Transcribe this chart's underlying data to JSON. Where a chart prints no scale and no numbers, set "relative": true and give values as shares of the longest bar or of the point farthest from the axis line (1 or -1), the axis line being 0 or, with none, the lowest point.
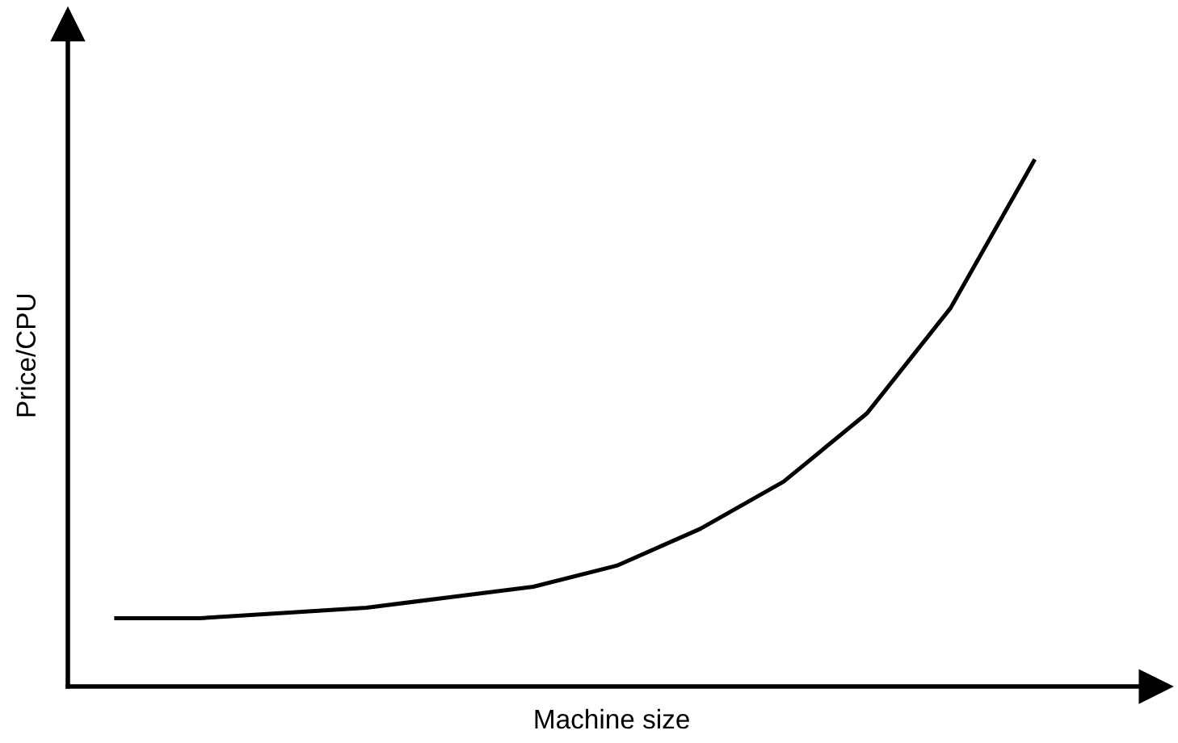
{
  "chart_data": {
    "type": "line",
    "relative": true,
    "xlabel": "Machine size",
    "ylabel": "Price/CPU",
    "categories": [
      null,
      null,
      null,
      null,
      null,
      null,
      null,
      null,
      null,
      null,
      null,
      null
    ],
    "series": [
      {
        "color": "#000000",
        "values": [
          0.13,
          0.13,
          0.14,
          0.15,
          0.17,
          0.19,
          0.23,
          0.3,
          0.39,
          0.52,
          0.72,
          1
        ]
      }
    ],
    "legend": false,
    "marker": "none",
    "line_style": "solid"
  }
}
